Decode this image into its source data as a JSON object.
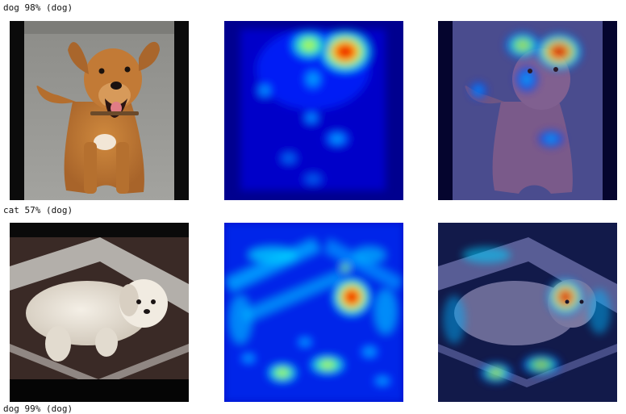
{
  "rows": [
    {
      "caption": "dog 98% (dog)",
      "subject": "tan dog sitting",
      "image_alt": "Tan short-haired dog sitting on concrete floor",
      "heatmap_alt": "Grad-CAM heatmap focused on the dog's head",
      "overlay_alt": "Heatmap overlaid on the dog photo"
    },
    {
      "caption": "cat 57% (dog)",
      "subject": "white fluffy dog lying",
      "image_alt": "White fluffy dog lying on a dark mat",
      "heatmap_alt": "Grad-CAM heatmap with a hotspot near the dog's face",
      "overlay_alt": "Heatmap overlaid on the white dog photo"
    },
    {
      "caption": "dog 99% (dog)"
    }
  ],
  "colors": {
    "heatmap_background": "#00008f",
    "heatmap_hot": "#d00000",
    "photo_floor": "#9a9a96"
  }
}
